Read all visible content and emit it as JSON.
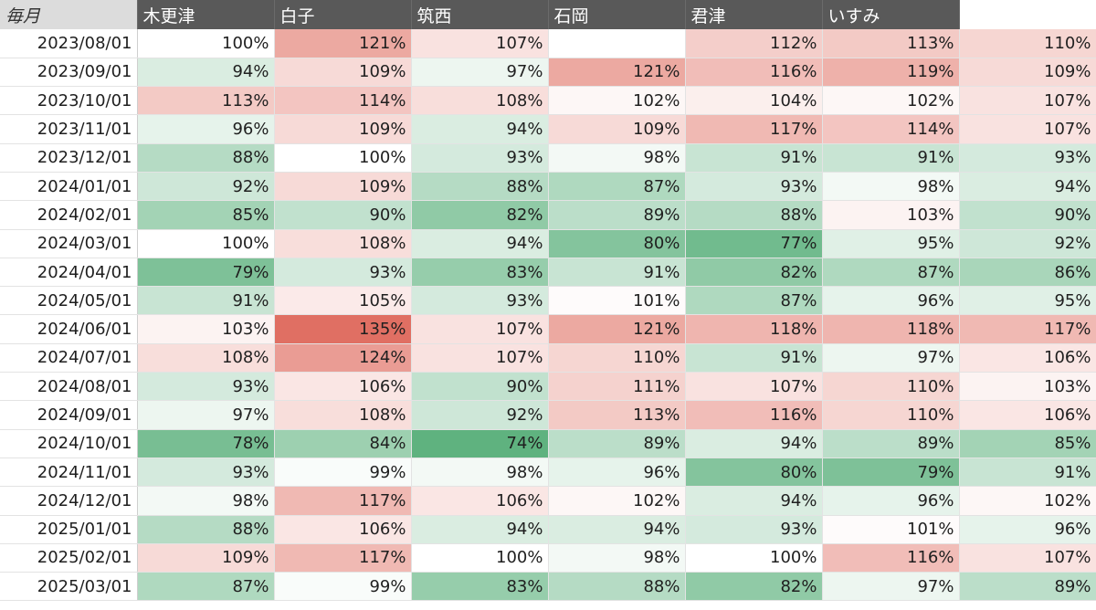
{
  "header": {
    "corner": "毎月",
    "columns": [
      "木更津",
      "白子",
      "筑西",
      "石岡",
      "君津",
      "いすみ",
      ""
    ]
  },
  "rows": [
    {
      "date": "2023/08/01",
      "values": [
        "100%",
        "121%",
        "107%",
        "",
        "112%",
        "113%",
        "110%"
      ]
    },
    {
      "date": "2023/09/01",
      "values": [
        "94%",
        "109%",
        "97%",
        "121%",
        "116%",
        "119%",
        "109%"
      ]
    },
    {
      "date": "2023/10/01",
      "values": [
        "113%",
        "114%",
        "108%",
        "102%",
        "104%",
        "102%",
        "107%"
      ]
    },
    {
      "date": "2023/11/01",
      "values": [
        "96%",
        "109%",
        "94%",
        "109%",
        "117%",
        "114%",
        "107%"
      ]
    },
    {
      "date": "2023/12/01",
      "values": [
        "88%",
        "100%",
        "93%",
        "98%",
        "91%",
        "91%",
        "93%"
      ]
    },
    {
      "date": "2024/01/01",
      "values": [
        "92%",
        "109%",
        "88%",
        "87%",
        "93%",
        "98%",
        "94%"
      ]
    },
    {
      "date": "2024/02/01",
      "values": [
        "85%",
        "90%",
        "82%",
        "89%",
        "88%",
        "103%",
        "90%"
      ]
    },
    {
      "date": "2024/03/01",
      "values": [
        "100%",
        "108%",
        "94%",
        "80%",
        "77%",
        "95%",
        "92%"
      ]
    },
    {
      "date": "2024/04/01",
      "values": [
        "79%",
        "93%",
        "83%",
        "91%",
        "82%",
        "87%",
        "86%"
      ]
    },
    {
      "date": "2024/05/01",
      "values": [
        "91%",
        "105%",
        "93%",
        "101%",
        "87%",
        "96%",
        "95%"
      ]
    },
    {
      "date": "2024/06/01",
      "values": [
        "103%",
        "135%",
        "107%",
        "121%",
        "118%",
        "118%",
        "117%"
      ]
    },
    {
      "date": "2024/07/01",
      "values": [
        "108%",
        "124%",
        "107%",
        "110%",
        "91%",
        "97%",
        "106%"
      ]
    },
    {
      "date": "2024/08/01",
      "values": [
        "93%",
        "106%",
        "90%",
        "111%",
        "107%",
        "110%",
        "103%"
      ]
    },
    {
      "date": "2024/09/01",
      "values": [
        "97%",
        "108%",
        "92%",
        "113%",
        "116%",
        "110%",
        "106%"
      ]
    },
    {
      "date": "2024/10/01",
      "values": [
        "78%",
        "84%",
        "74%",
        "89%",
        "94%",
        "89%",
        "85%"
      ]
    },
    {
      "date": "2024/11/01",
      "values": [
        "93%",
        "99%",
        "98%",
        "96%",
        "80%",
        "79%",
        "91%"
      ]
    },
    {
      "date": "2024/12/01",
      "values": [
        "98%",
        "117%",
        "106%",
        "102%",
        "94%",
        "96%",
        "102%"
      ]
    },
    {
      "date": "2025/01/01",
      "values": [
        "88%",
        "106%",
        "94%",
        "94%",
        "93%",
        "101%",
        "96%"
      ]
    },
    {
      "date": "2025/02/01",
      "values": [
        "109%",
        "117%",
        "100%",
        "98%",
        "100%",
        "116%",
        "107%"
      ]
    },
    {
      "date": "2025/03/01",
      "values": [
        "87%",
        "99%",
        "83%",
        "88%",
        "82%",
        "97%",
        "89%"
      ]
    }
  ],
  "colors": {
    "header_bg": "#595959",
    "corner_bg": "#dcdcdc",
    "high": "#e06f63",
    "mid": "#ffffff",
    "low": "#5fb27f"
  }
}
